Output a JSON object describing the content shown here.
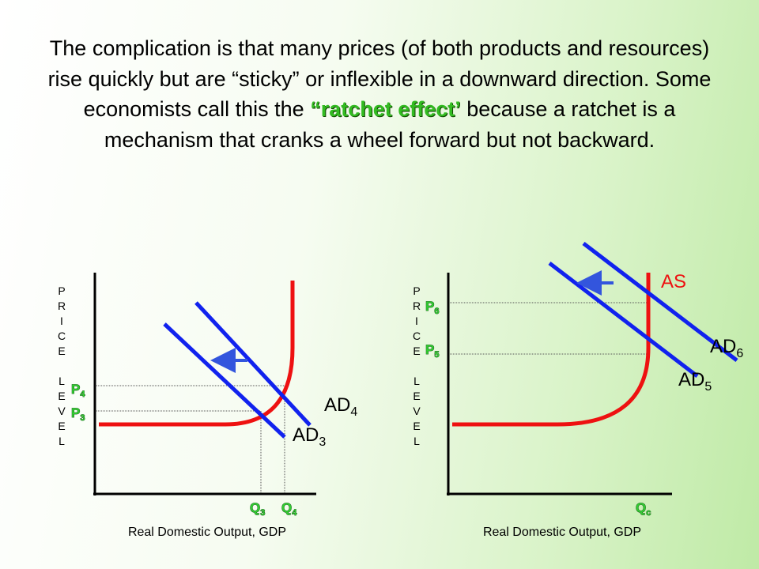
{
  "title": {
    "before": "The complication is that many prices (of both products and resources) rise quickly but are “sticky” or inflexible in a downward direction.  Some economists call this the ",
    "emphasis": "“ratchet effect’",
    "after": " because a ratchet is a mechanism that cranks a wheel forward but not backward."
  },
  "left_diagram": {
    "y_axis_label": "PRICE LEVEL",
    "x_axis_label": "Real Domestic Output, GDP",
    "price_labels": [
      {
        "base": "P",
        "sub": "4"
      },
      {
        "base": "P",
        "sub": "3"
      }
    ],
    "quantity_labels": [
      {
        "base": "Q",
        "sub": "3"
      },
      {
        "base": "Q",
        "sub": "4"
      }
    ],
    "curve_labels": [
      {
        "base": "AD",
        "sub": "4"
      },
      {
        "base": "AD",
        "sub": "3"
      }
    ]
  },
  "right_diagram": {
    "y_axis_label": "PRICE LEVEL",
    "x_axis_label": "Real Domestic Output, GDP",
    "price_labels": [
      {
        "base": "P",
        "sub": "6"
      },
      {
        "base": "P",
        "sub": "5"
      }
    ],
    "quantity_labels": [
      {
        "base": "Q",
        "sub": "c"
      }
    ],
    "supply_label": "AS",
    "curve_labels": [
      {
        "base": "AD",
        "sub": "6"
      },
      {
        "base": "AD",
        "sub": "5"
      }
    ]
  }
}
